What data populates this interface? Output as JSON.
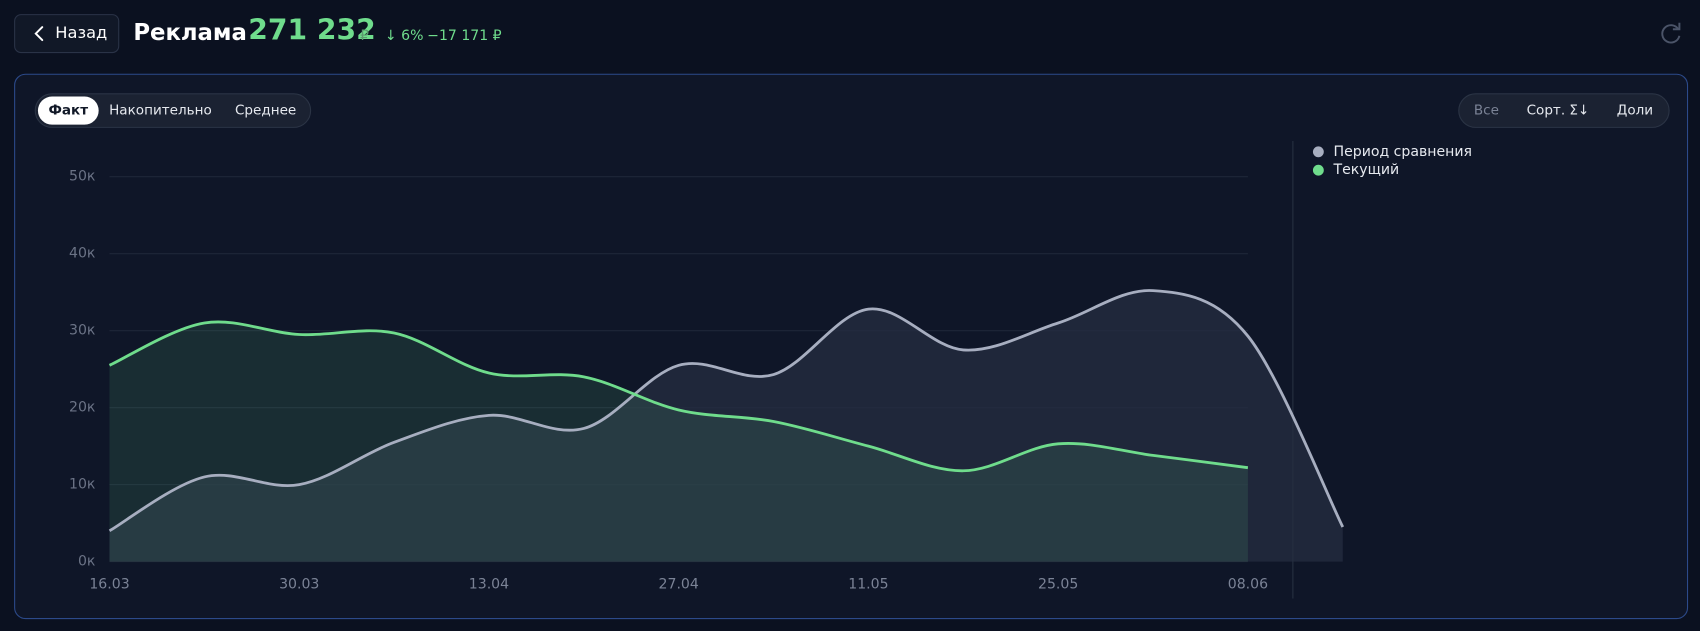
{
  "header": {
    "back": "Назад",
    "title": "Реклама",
    "total": "271 232",
    "currency": "₽",
    "change_pct": "↓ 6%",
    "change_abs": "−17 171 ₽"
  },
  "controls": {
    "modes": [
      "Факт",
      "Накопительно",
      "Среднее"
    ],
    "active_mode": 0,
    "actions": [
      "Все",
      "Сорт. Σ↓",
      "Доли"
    ]
  },
  "chart_data": {
    "type": "line",
    "x": [
      "16.03",
      null,
      "30.03",
      null,
      "13.04",
      null,
      "27.04",
      null,
      "11.05",
      null,
      "25.05",
      null,
      "08.06",
      null
    ],
    "series": [
      {
        "name": "Период сравнения",
        "color": "#a7aec0",
        "values": [
          4,
          11,
          10,
          15.5,
          19,
          17.3,
          25.5,
          24.3,
          32.8,
          27.5,
          31,
          35.2,
          29.3,
          4.5
        ]
      },
      {
        "name": "Текущий",
        "color": "#6fdc8c",
        "values": [
          25.5,
          31,
          29.5,
          29.7,
          24.5,
          24,
          19.7,
          18.2,
          15,
          11.8,
          15.3,
          13.8,
          12.2,
          null
        ]
      }
    ],
    "ylim": [
      0,
      50
    ],
    "yticks": [
      {
        "value": 0,
        "label": "0к"
      },
      {
        "value": 10,
        "label": "10к"
      },
      {
        "value": 20,
        "label": "20к"
      },
      {
        "value": 30,
        "label": "30к"
      },
      {
        "value": 40,
        "label": "40к"
      },
      {
        "value": 50,
        "label": "50к"
      }
    ],
    "grid": true,
    "legend": "upper right"
  }
}
